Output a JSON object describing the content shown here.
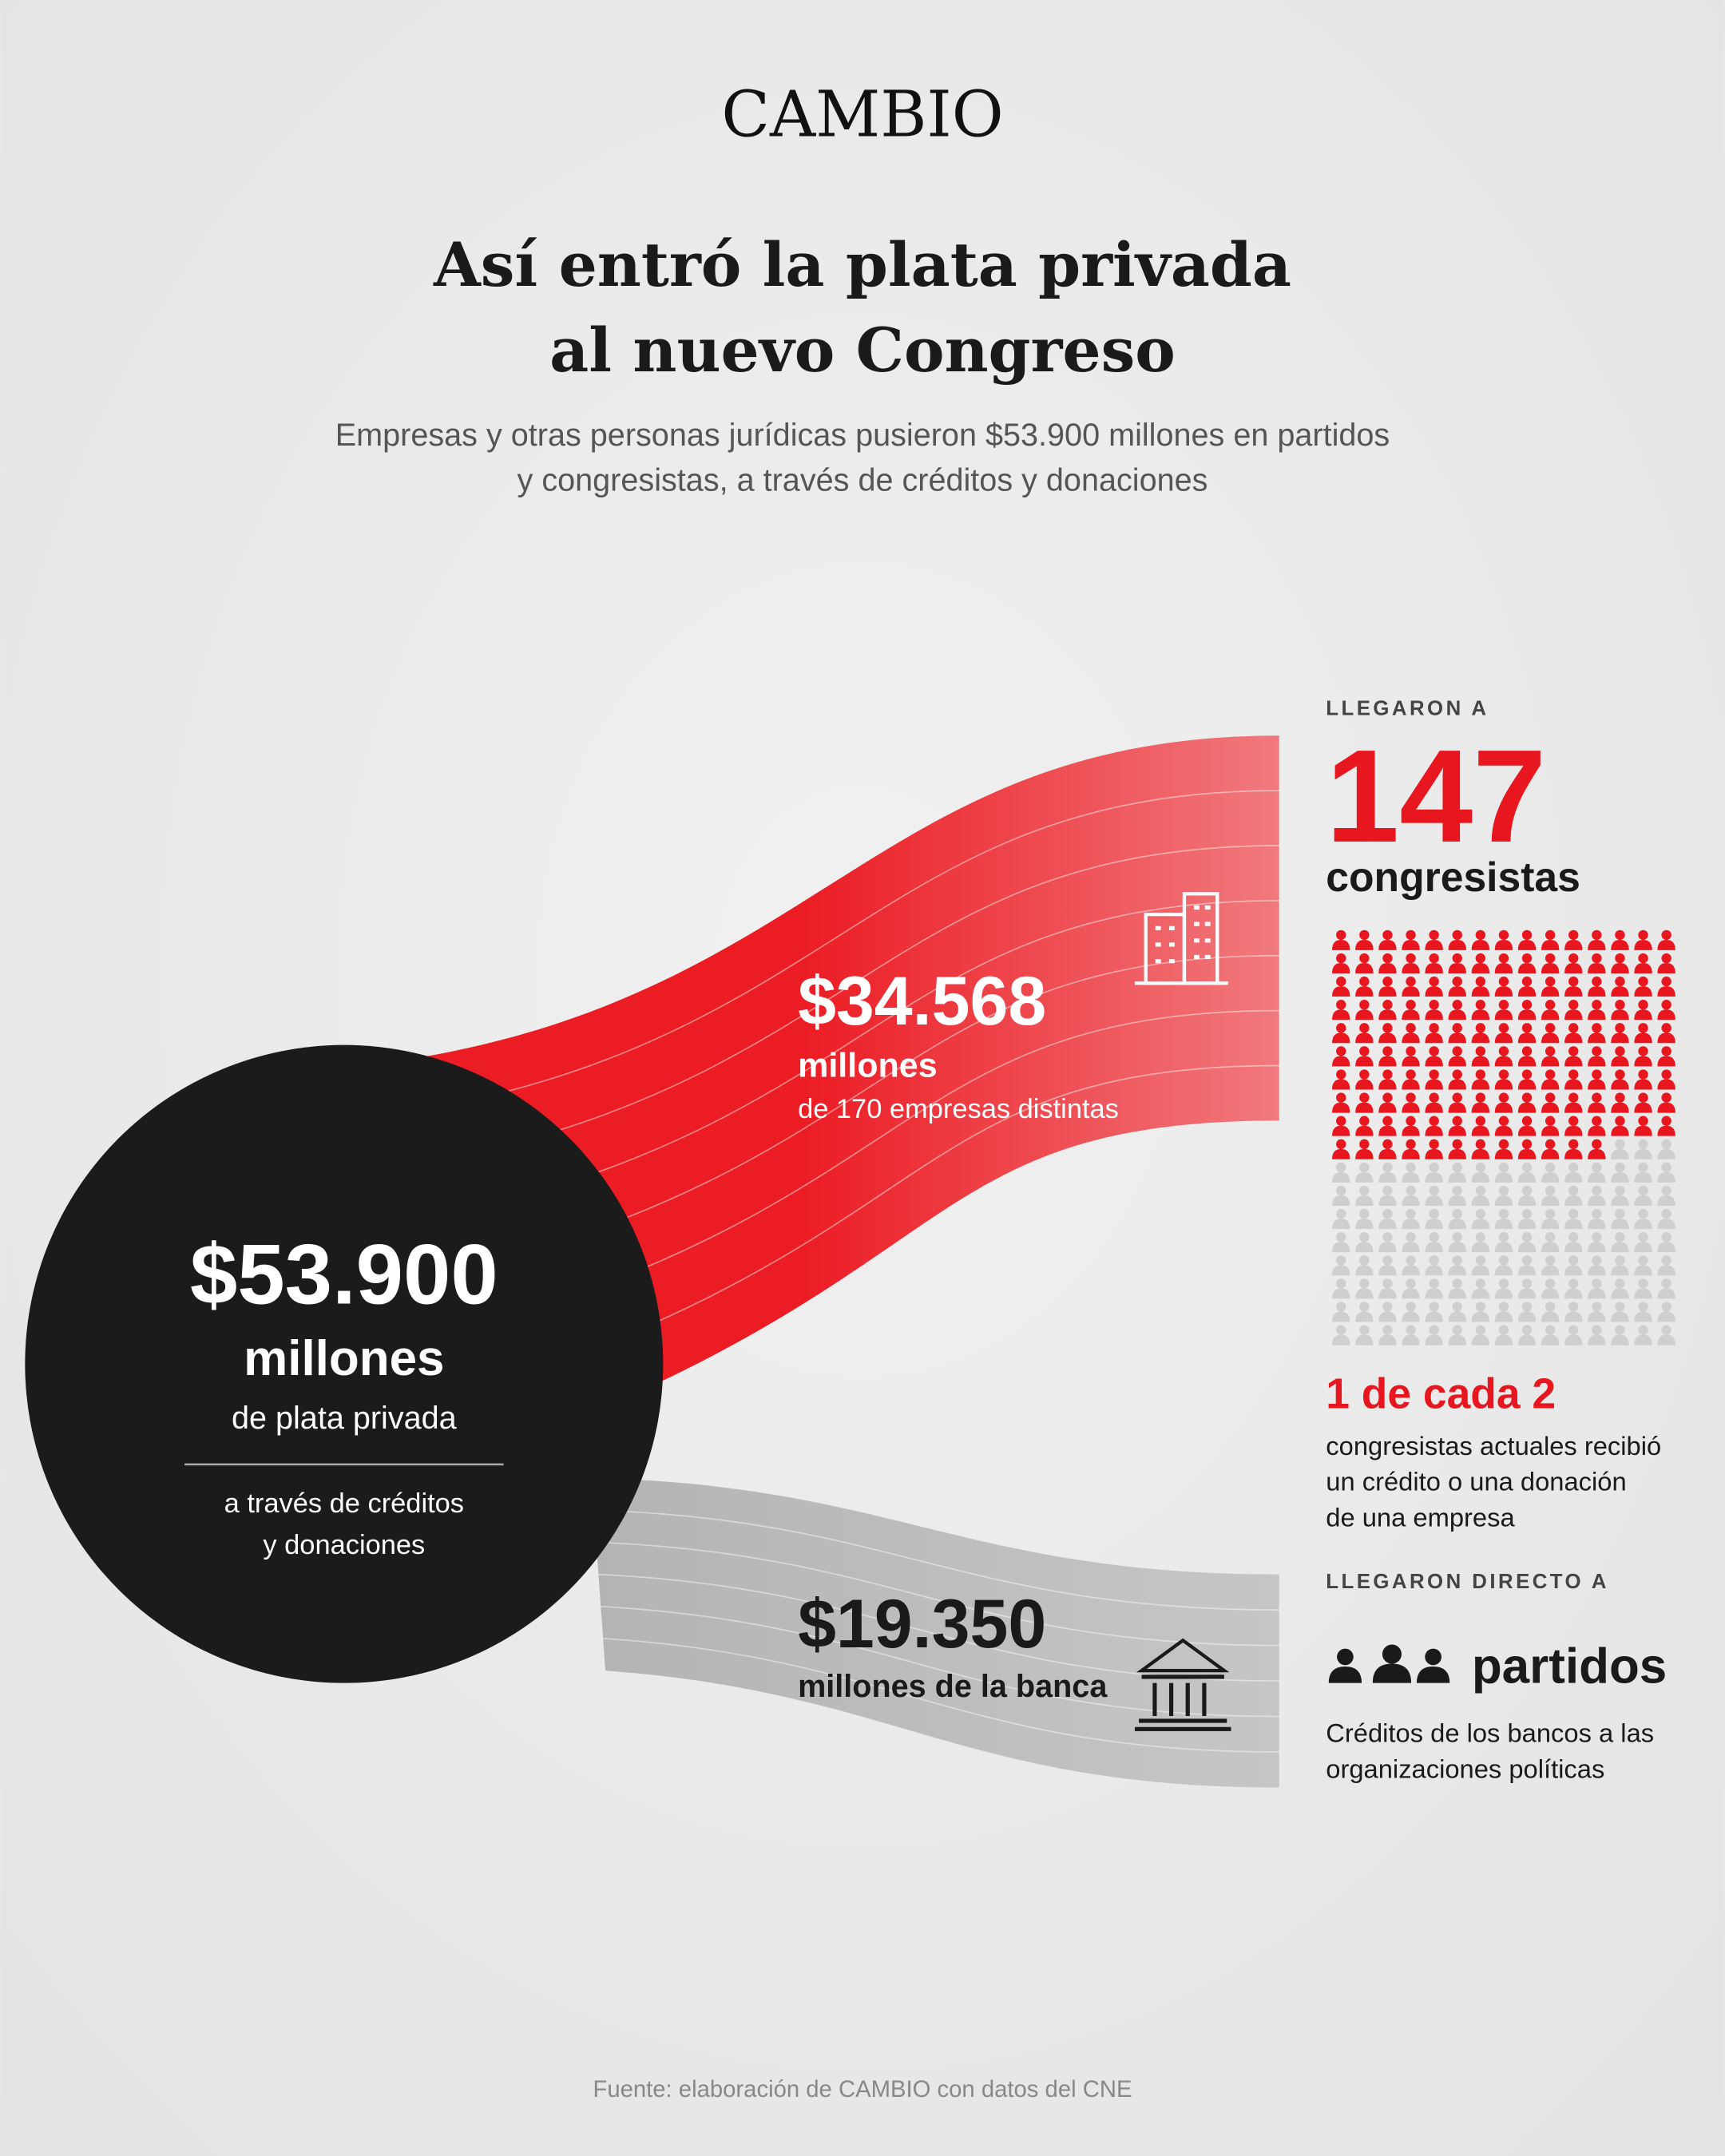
{
  "header": {
    "brand": "CAMBIO",
    "title_lines": [
      "Así entró la plata privada",
      "al nuevo Congreso"
    ],
    "subtitle_lines": [
      "Empresas y otras personas jurídicas pusieron $53.900 millones en partidos",
      "y congresistas, a través de créditos y donaciones"
    ]
  },
  "total": {
    "amount": "$53.900",
    "unit": "millones",
    "desc": "de plata privada",
    "via_lines": [
      "a través de créditos",
      "y donaciones"
    ]
  },
  "companies": {
    "amount": "$34.568",
    "unit": "millones",
    "desc": "de 170 empresas distintas"
  },
  "banks": {
    "amount": "$19.350",
    "unit": "millones de la banca"
  },
  "congress": {
    "kicker": "LLEGARON A",
    "count": "147",
    "label": "congresistas",
    "ratio": "1 de cada 2",
    "note_lines": [
      "congresistas actuales recibió",
      "un crédito o una donación",
      "de una empresa"
    ]
  },
  "parties": {
    "kicker": "LLEGARON DIRECTO A",
    "label": "partidos",
    "note_lines": [
      "Créditos de los bancos a las",
      "organizaciones políticas"
    ]
  },
  "footer": {
    "source": "Fuente: elaboración de CAMBIO con datos del CNE"
  }
}
